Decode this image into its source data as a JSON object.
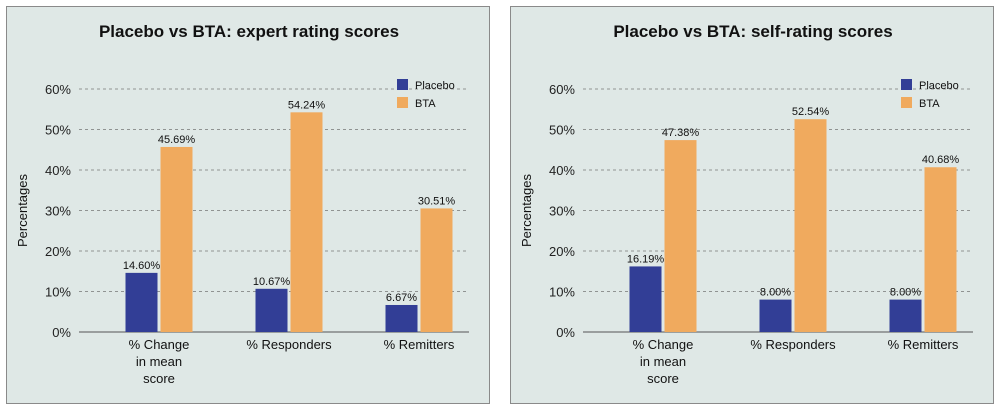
{
  "chart_data": [
    {
      "type": "bar",
      "title": "Placebo vs BTA: expert rating scores",
      "ylabel": "Percentages",
      "xlabel": "",
      "ylim": [
        0,
        60
      ],
      "yticks": [
        "0%",
        "10%",
        "20%",
        "30%",
        "40%",
        "50%",
        "60%"
      ],
      "grid": true,
      "legend_position": "top-right",
      "categories": [
        [
          "% Change",
          "in mean",
          "score"
        ],
        [
          "% Responders"
        ],
        [
          "% Remitters"
        ]
      ],
      "series": [
        {
          "name": "Placebo",
          "color": "#323e96",
          "values": [
            14.6,
            10.67,
            6.67
          ],
          "labels": [
            "14.60%",
            "10.67%",
            "6.67%"
          ]
        },
        {
          "name": "BTA",
          "color": "#f0aa5e",
          "values": [
            45.69,
            54.24,
            30.51
          ],
          "labels": [
            "45.69%",
            "54.24%",
            "30.51%"
          ]
        }
      ]
    },
    {
      "type": "bar",
      "title": "Placebo vs BTA: self-rating scores",
      "ylabel": "Percentages",
      "xlabel": "",
      "ylim": [
        0,
        60
      ],
      "yticks": [
        "0%",
        "10%",
        "20%",
        "30%",
        "40%",
        "50%",
        "60%"
      ],
      "grid": true,
      "legend_position": "top-right",
      "categories": [
        [
          "% Change",
          "in mean",
          "score"
        ],
        [
          "% Responders"
        ],
        [
          "% Remitters"
        ]
      ],
      "series": [
        {
          "name": "Placebo",
          "color": "#323e96",
          "values": [
            16.19,
            8.0,
            8.0
          ],
          "labels": [
            "16.19%",
            "8.00%",
            "8.00%"
          ]
        },
        {
          "name": "BTA",
          "color": "#f0aa5e",
          "values": [
            47.38,
            52.54,
            40.68
          ],
          "labels": [
            "47.38%",
            "52.54%",
            "40.68%"
          ]
        }
      ]
    }
  ]
}
